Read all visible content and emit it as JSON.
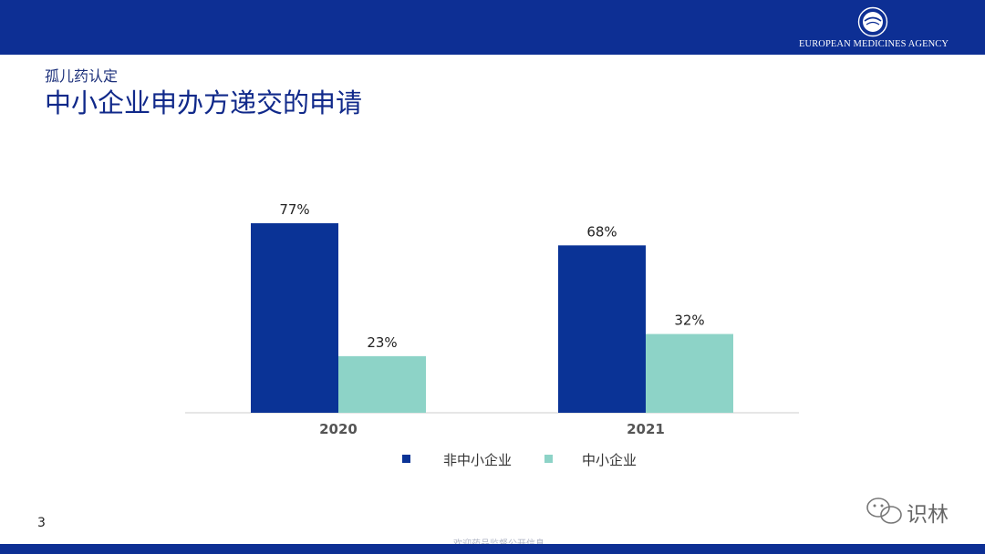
{
  "header": {
    "agency_name": "EUROPEAN MEDICINES AGENCY",
    "subtitle": "孤儿药认定",
    "title": "中小企业申办方递交的申请"
  },
  "footer": {
    "page_number": "3",
    "watermark_text": "欢迎药品监督公开信息",
    "watermark_brand": "识林"
  },
  "colors": {
    "brand_blue": "#0d2f94",
    "series_non_sme": "#0a3396",
    "series_sme": "#8dd3c7"
  },
  "chart_data": {
    "type": "bar",
    "categories": [
      "2020",
      "2021"
    ],
    "series": [
      {
        "name": "非中小企业",
        "values": [
          77,
          68
        ],
        "labels": [
          "77%",
          "68%"
        ]
      },
      {
        "name": "中小企业",
        "values": [
          23,
          32
        ],
        "labels": [
          "23%",
          "32%"
        ]
      }
    ],
    "ylim": [
      0,
      100
    ],
    "legend_position": "bottom",
    "grid": false
  }
}
